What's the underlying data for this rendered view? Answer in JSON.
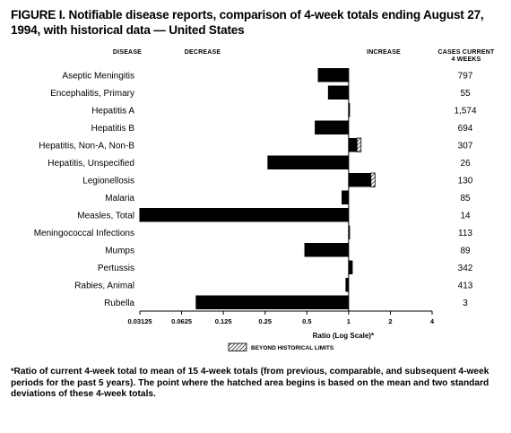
{
  "figure": {
    "title": "FIGURE I. Notifiable disease reports, comparison of 4-week totals ending August 27, 1994, with historical data — United States",
    "footnote_marker": "*",
    "footnote": "Ratio of current 4-week total to mean of 15 4-week totals (from previous, comparable, and subsequent 4-week periods for the past 5 years). The point where the hatched area begins is based on the mean and two standard deviations of these 4-week totals."
  },
  "headers": {
    "disease": "DISEASE",
    "decrease": "DECREASE",
    "increase": "INCREASE",
    "cases_line1": "CASES CURRENT",
    "cases_line2": "4 WEEKS"
  },
  "chart_data": {
    "type": "bar",
    "orientation": "horizontal",
    "x_scale": "log2",
    "xlabel": "Ratio (Log Scale)*",
    "xlim": [
      0.03125,
      4
    ],
    "x_ticks": [
      0.03125,
      0.0625,
      0.125,
      0.25,
      0.5,
      1,
      2,
      4
    ],
    "x_tick_labels": [
      "0.03125",
      "0.0625",
      "0.125",
      "0.25",
      "0.5",
      "1",
      "2",
      "4"
    ],
    "baseline": 1,
    "categories": [
      "Aseptic Meningitis",
      "Encephalitis, Primary",
      "Hepatitis A",
      "Hepatitis B",
      "Hepatitis, Non-A, Non-B",
      "Hepatitis, Unspecified",
      "Legionellosis",
      "Malaria",
      "Measles, Total",
      "Meningococcal Infections",
      "Mumps",
      "Pertussis",
      "Rabies, Animal",
      "Rubella"
    ],
    "values": [
      0.6,
      0.71,
      1.01,
      0.57,
      1.23,
      0.26,
      1.55,
      0.89,
      0.031,
      1.0,
      0.48,
      1.07,
      0.95,
      0.079
    ],
    "cases_current_4_weeks": [
      "797",
      "55",
      "1,574",
      "694",
      "307",
      "26",
      "130",
      "85",
      "14",
      "113",
      "89",
      "342",
      "413",
      "3"
    ],
    "beyond_historical_limits_from": [
      null,
      null,
      null,
      null,
      1.15,
      null,
      1.45,
      null,
      null,
      null,
      null,
      null,
      null,
      null
    ],
    "legend": {
      "label": "BEYOND HISTORICAL LIMITS",
      "placement": "bottom-center"
    },
    "colors": {
      "bar": "#000000",
      "hatch": "#000000",
      "background": "#ffffff"
    }
  }
}
